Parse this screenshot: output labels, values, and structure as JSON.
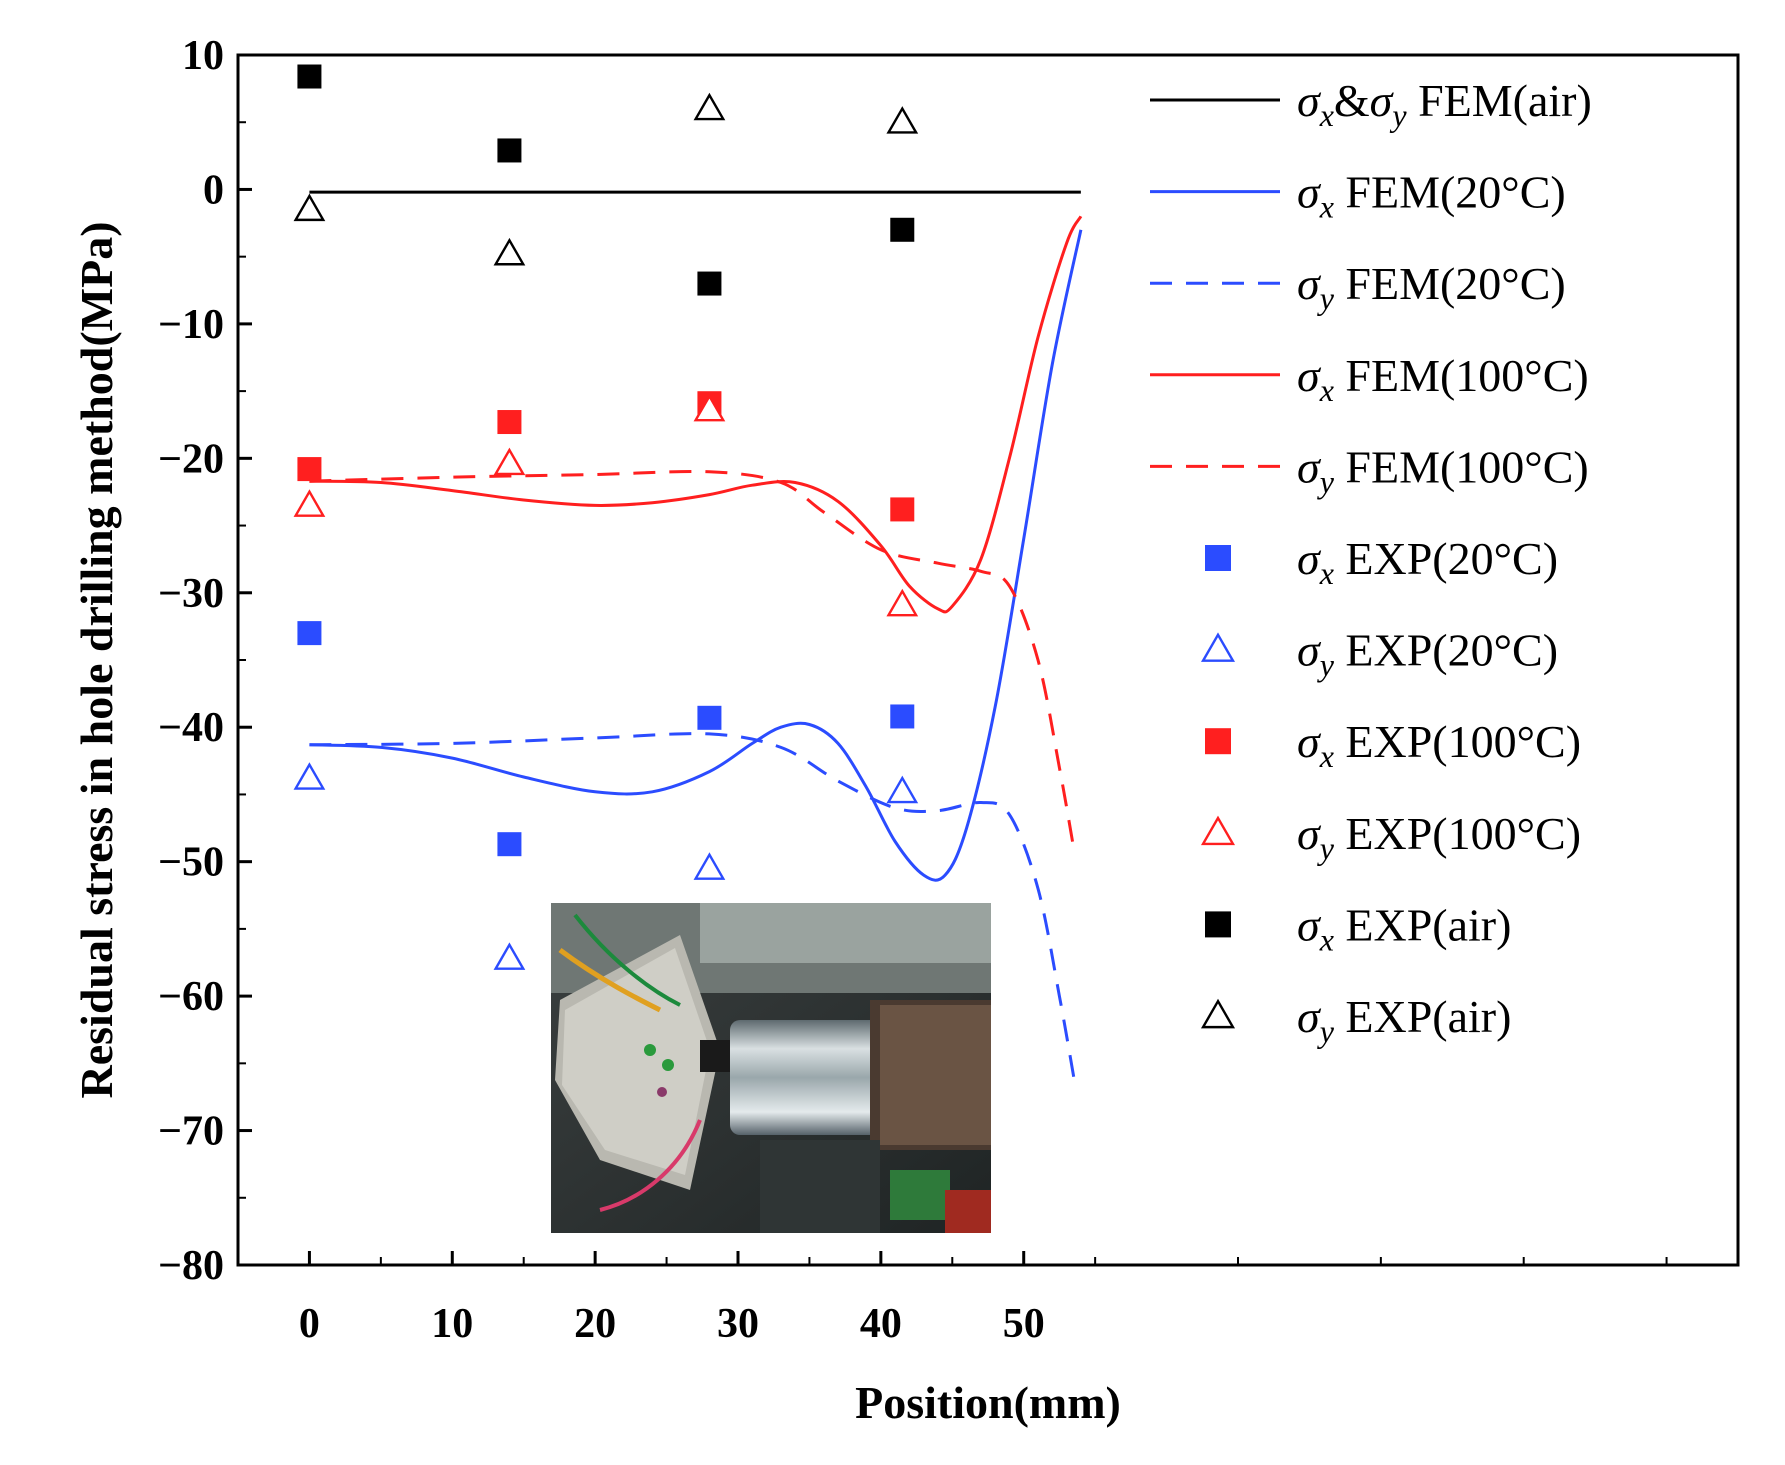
{
  "chart_data": {
    "type": "line",
    "xlabel": "Position(mm)",
    "ylabel": "Residual stress in hole drilling method(MPa)",
    "xlim": [
      -5,
      100
    ],
    "ylim": [
      -80,
      10
    ],
    "xticks": [
      "0",
      "10",
      "20",
      "30",
      "40",
      "50"
    ],
    "yticks": [
      "10",
      "0",
      "−10",
      "−20",
      "−30",
      "−40",
      "−50",
      "−60",
      "−70",
      "−80"
    ],
    "series": [
      {
        "name": "σx&σy FEM(air)",
        "legend_sub": "x",
        "legend_sub2": "y",
        "legend_pre": "σ",
        "legend_mid": "&σ",
        "legend_post": " FEM(air)",
        "kind": "line",
        "style": "solid",
        "color": "#000000",
        "x": [
          0,
          54
        ],
        "y": [
          -0.2,
          -0.2
        ]
      },
      {
        "name": "σx FEM(20°C)",
        "legend_sub": "x",
        "legend_post": " FEM(20°C)",
        "kind": "line",
        "style": "solid",
        "color": "#2b4cff",
        "x": [
          0,
          5,
          10,
          15,
          20,
          24,
          28,
          31,
          33,
          35,
          37,
          39,
          41,
          43,
          44.5,
          46,
          48,
          50,
          52,
          54
        ],
        "y": [
          -41.3,
          -41.5,
          -42.3,
          -43.7,
          -44.8,
          -44.8,
          -43.3,
          -41.2,
          -40,
          -39.8,
          -41.2,
          -44.5,
          -48.5,
          -51,
          -51,
          -47.5,
          -38.5,
          -26,
          -13,
          -3
        ]
      },
      {
        "name": "σy FEM(20°C)",
        "legend_sub": "y",
        "legend_post": " FEM(20°C)",
        "kind": "line",
        "style": "dashed",
        "color": "#2b4cff",
        "x": [
          0,
          10,
          20,
          28,
          33,
          37,
          41,
          44,
          47,
          49,
          51,
          52.5,
          53.5
        ],
        "y": [
          -41.3,
          -41.2,
          -40.8,
          -40.5,
          -41.5,
          -44,
          -46,
          -46.2,
          -45.6,
          -46.5,
          -52,
          -60,
          -66
        ]
      },
      {
        "name": "σx FEM(100°C)",
        "legend_sub": "x",
        "legend_post": " FEM(100°C)",
        "kind": "line",
        "style": "solid",
        "color": "#ff1f1f",
        "x": [
          0,
          5,
          10,
          15,
          20,
          24,
          28,
          31,
          34,
          37,
          40,
          42,
          44,
          45,
          47,
          49,
          51,
          53,
          54
        ],
        "y": [
          -21.7,
          -21.8,
          -22.4,
          -23.1,
          -23.5,
          -23.3,
          -22.7,
          -22,
          -21.8,
          -23.2,
          -26.5,
          -29.5,
          -31.2,
          -31,
          -27.5,
          -20,
          -11,
          -4,
          -2
        ]
      },
      {
        "name": "σy FEM(100°C)",
        "legend_sub": "y",
        "legend_post": " FEM(100°C)",
        "kind": "line",
        "style": "dashed",
        "color": "#ff1f1f",
        "x": [
          0,
          10,
          20,
          28,
          33,
          36,
          40,
          44,
          47,
          49,
          51,
          52.5,
          53.5
        ],
        "y": [
          -21.7,
          -21.4,
          -21.2,
          -21,
          -21.8,
          -24,
          -26.8,
          -27.8,
          -28.4,
          -29.5,
          -35,
          -43,
          -49
        ]
      },
      {
        "name": "σx EXP(20°C)",
        "legend_sub": "x",
        "legend_post": " EXP(20°C)",
        "kind": "marker",
        "marker": "square-filled",
        "color": "#2b4cff",
        "x": [
          0,
          14,
          28,
          41.5
        ],
        "y": [
          -33,
          -48.7,
          -39.3,
          -39.2
        ]
      },
      {
        "name": "σy EXP(20°C)",
        "legend_sub": "y",
        "legend_post": " EXP(20°C)",
        "kind": "marker",
        "marker": "triangle-open",
        "color": "#2b4cff",
        "x": [
          0,
          14,
          28,
          41.5
        ],
        "y": [
          -43.8,
          -57.2,
          -50.5,
          -44.8
        ]
      },
      {
        "name": "σx EXP(100°C)",
        "legend_sub": "x",
        "legend_post": " EXP(100°C)",
        "kind": "marker",
        "marker": "square-filled",
        "color": "#ff1f1f",
        "x": [
          0,
          14,
          28,
          41.5
        ],
        "y": [
          -20.8,
          -17.3,
          -15.9,
          -23.8
        ]
      },
      {
        "name": "σy EXP(100°C)",
        "legend_sub": "y",
        "legend_post": " EXP(100°C)",
        "kind": "marker",
        "marker": "triangle-open",
        "color": "#ff1f1f",
        "x": [
          0,
          14,
          28,
          41.5
        ],
        "y": [
          -23.5,
          -20.4,
          -16.4,
          -30.9
        ]
      },
      {
        "name": "σx EXP(air)",
        "legend_sub": "x",
        "legend_post": " EXP(air)",
        "kind": "marker",
        "marker": "square-filled",
        "color": "#000000",
        "x": [
          0,
          14,
          28,
          41.5
        ],
        "y": [
          8.4,
          2.9,
          -7,
          -3
        ]
      },
      {
        "name": "σy EXP(air)",
        "legend_sub": "y",
        "legend_post": " EXP(air)",
        "kind": "marker",
        "marker": "triangle-open",
        "color": "#000000",
        "x": [
          0,
          14,
          28,
          41.5
        ],
        "y": [
          -1.5,
          -4.8,
          6,
          5
        ]
      }
    ],
    "legend_position": "top-right",
    "inset": "photo of hole drilling setup"
  }
}
